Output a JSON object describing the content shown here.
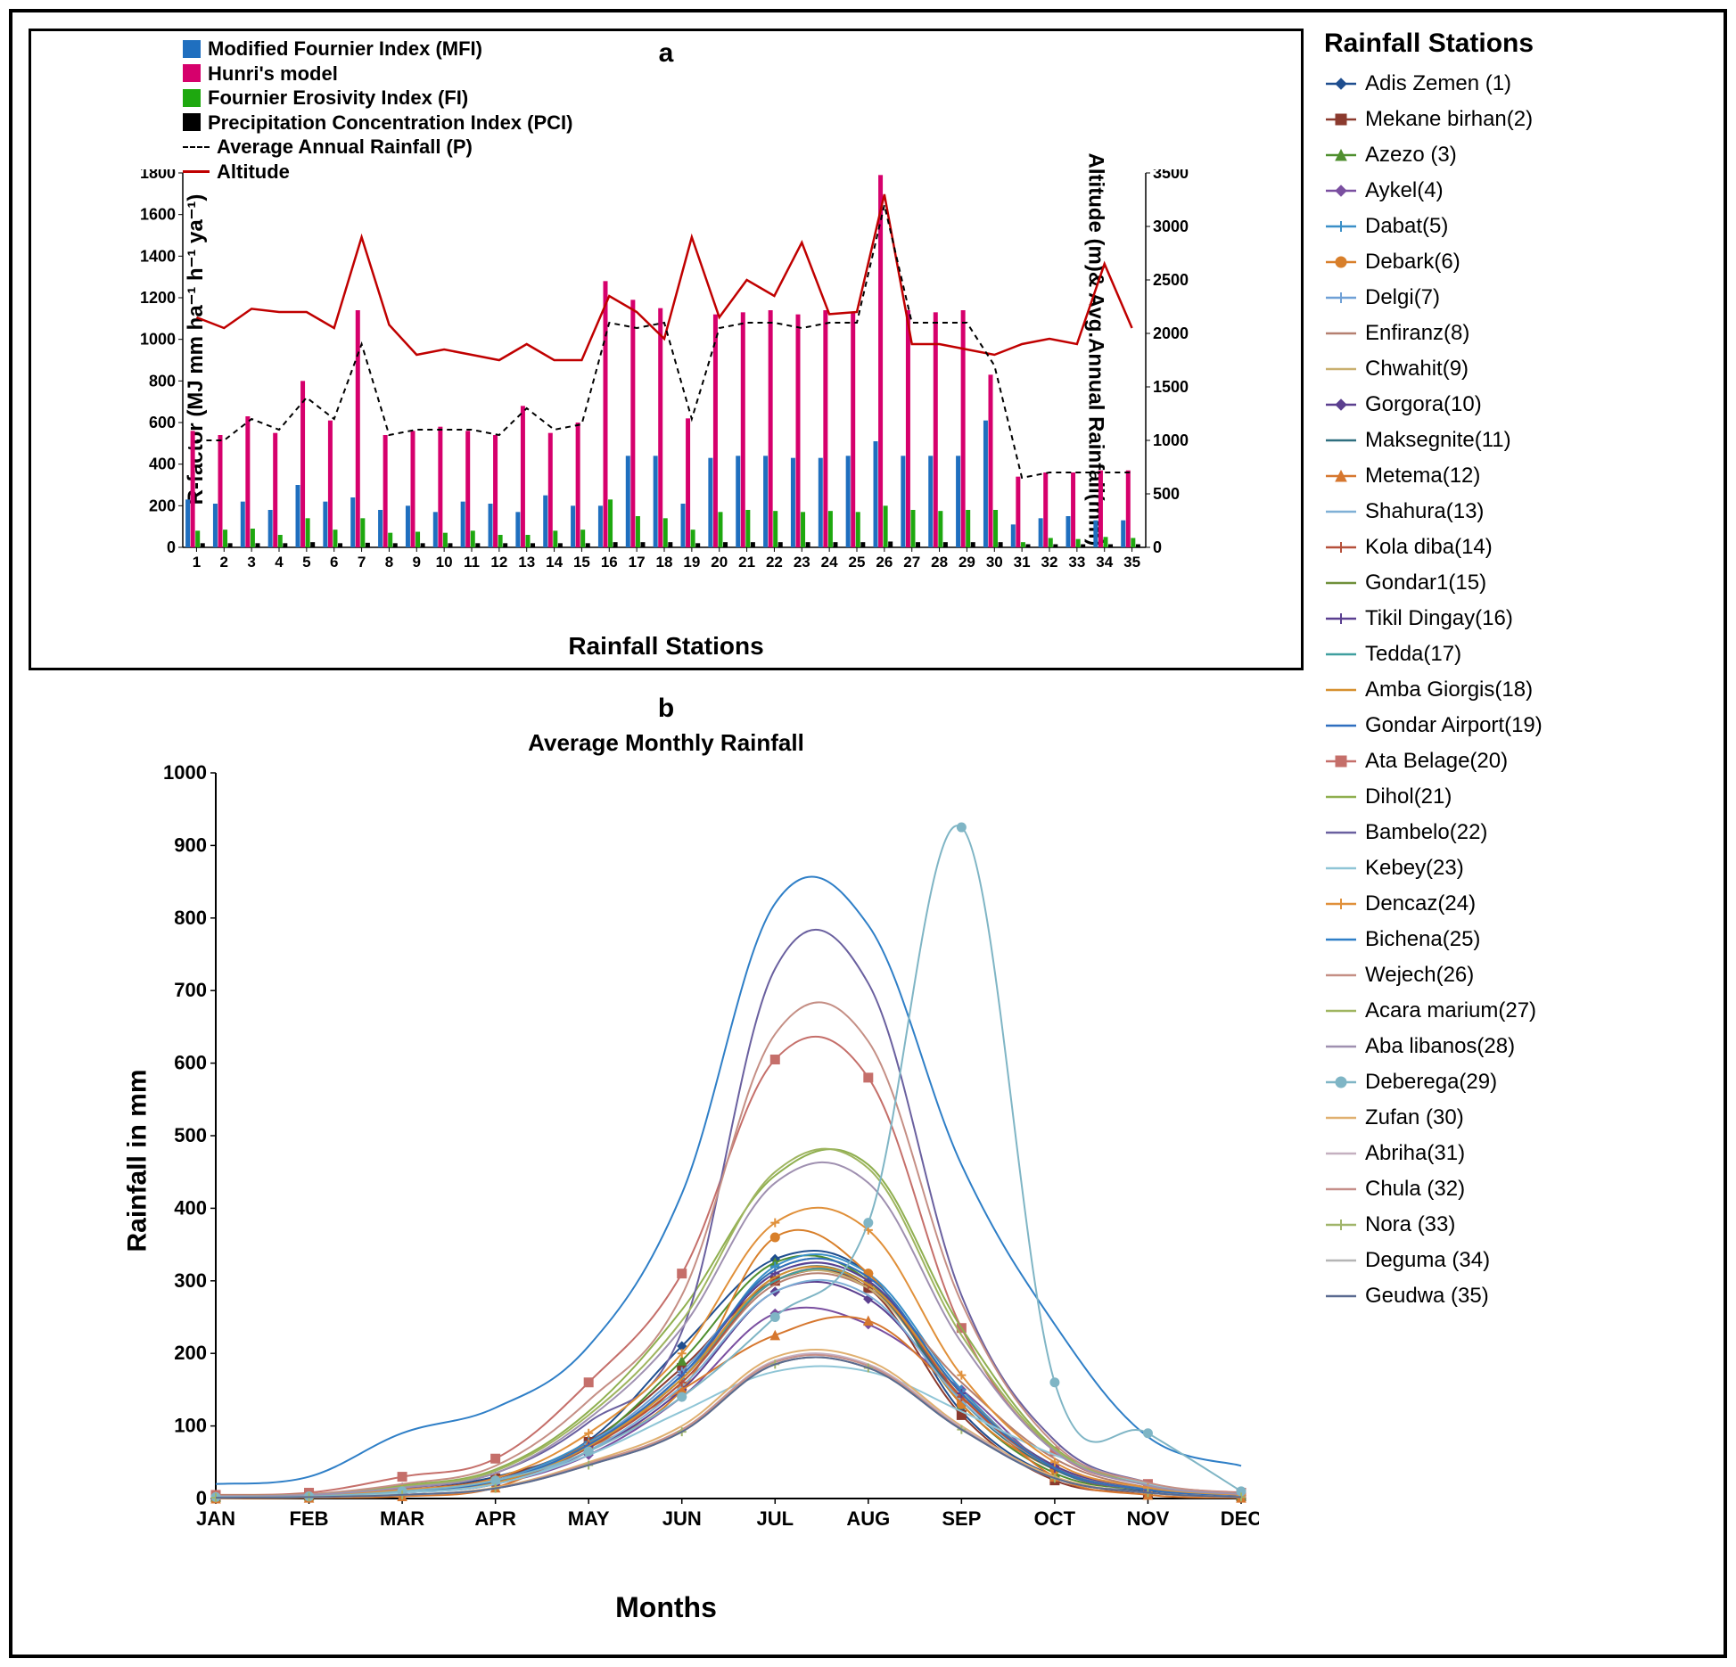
{
  "colors": {
    "mfi": "#1f6fbf",
    "hunri": "#d6006c",
    "fi": "#1ea80f",
    "pci": "#000000",
    "avg_p": "#000000",
    "altitude": "#c00000",
    "frame": "#000000",
    "bg": "#ffffff"
  },
  "panel_a": {
    "label": "a",
    "legend": {
      "mfi": "Modified Fournier Index (MFI)",
      "hunri": "Hunri's model",
      "fi": "Fournier Erosivity Index (FI)",
      "pci": "Precipitation Concentration Index (PCI)",
      "avg_p": "Average Annual Rainfall (P)",
      "altitude": "Altitude"
    },
    "ylabel_left": "R-factor (MJ mm ha⁻¹ h⁻¹ ya⁻¹)",
    "ylabel_right": "Altitude (m)& Avg.Annual Rainfall(mm)",
    "xlabel": "Rainfall Stations",
    "y_left": {
      "min": 0,
      "max": 1800,
      "step": 200
    },
    "y_right": {
      "min": 0,
      "max": 3500,
      "step": 500
    },
    "x_categories": [
      1,
      2,
      3,
      4,
      5,
      6,
      7,
      8,
      9,
      10,
      11,
      12,
      13,
      14,
      15,
      16,
      17,
      18,
      19,
      20,
      21,
      22,
      23,
      24,
      25,
      26,
      27,
      28,
      29,
      30,
      31,
      32,
      33,
      34,
      35
    ],
    "series": {
      "mfi": [
        230,
        210,
        220,
        180,
        300,
        220,
        240,
        180,
        200,
        170,
        220,
        210,
        170,
        250,
        200,
        200,
        440,
        440,
        210,
        430,
        440,
        440,
        430,
        430,
        440,
        510,
        440,
        440,
        440,
        610,
        110,
        140,
        150,
        130,
        130
      ],
      "hunri": [
        560,
        540,
        630,
        550,
        800,
        610,
        1140,
        540,
        560,
        580,
        560,
        540,
        680,
        550,
        600,
        1280,
        1190,
        1150,
        620,
        1120,
        1130,
        1140,
        1120,
        1140,
        1130,
        1790,
        1140,
        1130,
        1140,
        830,
        340,
        360,
        360,
        370,
        370
      ],
      "fi": [
        80,
        85,
        90,
        60,
        140,
        85,
        140,
        70,
        75,
        70,
        80,
        60,
        60,
        80,
        85,
        230,
        150,
        140,
        85,
        170,
        180,
        175,
        170,
        175,
        170,
        200,
        180,
        175,
        180,
        180,
        25,
        45,
        40,
        50,
        45
      ],
      "pci": [
        20,
        20,
        20,
        20,
        25,
        20,
        22,
        20,
        20,
        20,
        20,
        20,
        20,
        20,
        20,
        25,
        25,
        25,
        20,
        25,
        25,
        25,
        25,
        25,
        25,
        28,
        25,
        25,
        25,
        25,
        15,
        15,
        15,
        15,
        15
      ],
      "altitude": [
        2150,
        2050,
        2230,
        2200,
        2200,
        2050,
        2900,
        2080,
        1800,
        1850,
        1800,
        1750,
        1900,
        1750,
        1750,
        2350,
        2200,
        1950,
        2900,
        2150,
        2500,
        2350,
        2850,
        2180,
        2200,
        3300,
        1900,
        1900,
        1850,
        1800,
        1900,
        1950,
        1900,
        2650,
        2050
      ],
      "avg_p": [
        1000,
        1000,
        1200,
        1100,
        1400,
        1200,
        1900,
        1050,
        1100,
        1100,
        1100,
        1050,
        1300,
        1100,
        1150,
        2100,
        2050,
        2100,
        1200,
        2050,
        2100,
        2100,
        2050,
        2100,
        2100,
        3200,
        2100,
        2100,
        2100,
        1700,
        650,
        700,
        700,
        700,
        700
      ]
    }
  },
  "panel_b": {
    "label": "b",
    "title": "Average Monthly Rainfall",
    "ylabel": "Rainfall in mm",
    "xlabel": "Months",
    "y": {
      "min": 0,
      "max": 1000,
      "step": 100
    },
    "months": [
      "JAN",
      "FEB",
      "MAR",
      "APR",
      "MAY",
      "JUN",
      "JUL",
      "AUG",
      "SEP",
      "OCT",
      "NOV",
      "DEC"
    ],
    "lines": [
      {
        "name": "Adis Zemen (1)",
        "color": "#1f4e8f",
        "marker": "diamond",
        "v": [
          4,
          5,
          15,
          30,
          80,
          210,
          330,
          310,
          120,
          30,
          10,
          4
        ]
      },
      {
        "name": "Mekane birhan(2)",
        "color": "#8b3a2e",
        "marker": "square",
        "v": [
          3,
          4,
          12,
          28,
          78,
          180,
          300,
          290,
          115,
          25,
          8,
          3
        ]
      },
      {
        "name": "Azezo (3)",
        "color": "#4f8f2f",
        "marker": "triangle",
        "v": [
          2,
          4,
          10,
          25,
          75,
          190,
          325,
          300,
          130,
          35,
          12,
          4
        ]
      },
      {
        "name": "Aykel(4)",
        "color": "#7a4fa0",
        "marker": "diamond",
        "v": [
          3,
          3,
          8,
          20,
          60,
          140,
          255,
          240,
          150,
          40,
          12,
          4
        ]
      },
      {
        "name": "Dabat(5)",
        "color": "#3a8fc7",
        "marker": "plus",
        "v": [
          2,
          3,
          10,
          25,
          78,
          165,
          320,
          310,
          150,
          40,
          15,
          5
        ]
      },
      {
        "name": "Debark(6)",
        "color": "#d87f2a",
        "marker": "circle",
        "v": [
          2,
          2,
          9,
          20,
          70,
          150,
          360,
          310,
          130,
          40,
          12,
          4
        ]
      },
      {
        "name": "Delgi(7)",
        "color": "#6fa0d6",
        "marker": "plus",
        "v": [
          3,
          3,
          10,
          25,
          75,
          175,
          310,
          300,
          145,
          45,
          15,
          5
        ]
      },
      {
        "name": "Enfiranz(8)",
        "color": "#b58070",
        "marker": "none",
        "v": [
          2,
          3,
          8,
          22,
          70,
          160,
          295,
          290,
          160,
          55,
          15,
          5
        ]
      },
      {
        "name": "Chwahit(9)",
        "color": "#c9b070",
        "marker": "none",
        "v": [
          2,
          3,
          9,
          22,
          72,
          165,
          300,
          290,
          140,
          45,
          12,
          4
        ]
      },
      {
        "name": "Gorgora(10)",
        "color": "#5b3f8f",
        "marker": "diamond",
        "v": [
          2,
          3,
          8,
          20,
          65,
          150,
          285,
          275,
          140,
          45,
          12,
          4
        ]
      },
      {
        "name": "Maksegnite(11)",
        "color": "#2f6f7f",
        "marker": "none",
        "v": [
          2,
          3,
          9,
          22,
          72,
          165,
          305,
          295,
          135,
          40,
          12,
          4
        ]
      },
      {
        "name": "Metema(12)",
        "color": "#d6772f",
        "marker": "triangle",
        "v": [
          0,
          1,
          3,
          15,
          75,
          150,
          225,
          245,
          140,
          30,
          5,
          1
        ]
      },
      {
        "name": "Shahura(13)",
        "color": "#7fb0d6",
        "marker": "none",
        "v": [
          2,
          3,
          8,
          20,
          66,
          155,
          285,
          280,
          135,
          42,
          12,
          4
        ]
      },
      {
        "name": "Kola diba(14)",
        "color": "#b5503a",
        "marker": "plus",
        "v": [
          2,
          3,
          9,
          22,
          70,
          160,
          300,
          295,
          140,
          42,
          12,
          4
        ]
      },
      {
        "name": "Gondar1(15)",
        "color": "#6f8f3a",
        "marker": "none",
        "v": [
          2,
          3,
          10,
          24,
          74,
          170,
          315,
          305,
          145,
          42,
          12,
          4
        ]
      },
      {
        "name": "Tikil Dingay(16)",
        "color": "#5a3f90",
        "marker": "plus",
        "v": [
          2,
          3,
          9,
          22,
          72,
          170,
          310,
          300,
          145,
          42,
          12,
          4
        ]
      },
      {
        "name": "Tedda(17)",
        "color": "#3f9f9f",
        "marker": "none",
        "v": [
          2,
          3,
          9,
          22,
          72,
          165,
          300,
          295,
          145,
          42,
          12,
          4
        ]
      },
      {
        "name": "Amba Giorgis(18)",
        "color": "#d6902f",
        "marker": "none",
        "v": [
          2,
          3,
          9,
          22,
          72,
          165,
          305,
          295,
          145,
          42,
          12,
          4
        ]
      },
      {
        "name": "Gondar Airport(19)",
        "color": "#2f6fbf",
        "marker": "none",
        "v": [
          2,
          3,
          10,
          24,
          74,
          170,
          315,
          305,
          145,
          42,
          12,
          4
        ]
      },
      {
        "name": "Ata Belage(20)",
        "color": "#c56f6a",
        "marker": "square",
        "v": [
          5,
          8,
          30,
          55,
          160,
          310,
          605,
          580,
          235,
          65,
          20,
          8
        ]
      },
      {
        "name": "Dihol(21)",
        "color": "#8faf4f",
        "marker": "none",
        "v": [
          4,
          6,
          18,
          40,
          120,
          260,
          445,
          460,
          235,
          70,
          20,
          6
        ]
      },
      {
        "name": "Bambelo(22)",
        "color": "#6a609f",
        "marker": "none",
        "v": [
          3,
          5,
          14,
          35,
          105,
          230,
          730,
          710,
          280,
          80,
          22,
          7
        ]
      },
      {
        "name": "Kebey(23)",
        "color": "#8fc5d6",
        "marker": "none",
        "v": [
          2,
          3,
          8,
          20,
          60,
          120,
          175,
          175,
          120,
          60,
          20,
          5
        ]
      },
      {
        "name": "Dencaz(24)",
        "color": "#e0903a",
        "marker": "plus",
        "v": [
          3,
          4,
          12,
          28,
          90,
          200,
          380,
          370,
          170,
          50,
          15,
          5
        ]
      },
      {
        "name": "Bichena(25)",
        "color": "#2f7fc7",
        "marker": "none",
        "v": [
          20,
          30,
          90,
          125,
          210,
          420,
          820,
          790,
          460,
          240,
          85,
          45
        ]
      },
      {
        "name": "Wejech(26)",
        "color": "#c58f85",
        "marker": "none",
        "v": [
          4,
          6,
          20,
          45,
          135,
          280,
          640,
          630,
          270,
          75,
          22,
          7
        ]
      },
      {
        "name": "Acara marium(27)",
        "color": "#9fb560",
        "marker": "none",
        "v": [
          3,
          5,
          16,
          38,
          115,
          245,
          450,
          455,
          225,
          68,
          18,
          6
        ]
      },
      {
        "name": "Aba libanos(28)",
        "color": "#9f90b0",
        "marker": "none",
        "v": [
          3,
          5,
          15,
          35,
          110,
          235,
          435,
          435,
          215,
          65,
          18,
          6
        ]
      },
      {
        "name": "Deberega(29)",
        "color": "#7fb5c5",
        "marker": "circle",
        "v": [
          2,
          3,
          10,
          25,
          65,
          140,
          250,
          380,
          925,
          160,
          90,
          10
        ]
      },
      {
        "name": "Zufan (30)",
        "color": "#e0b070",
        "marker": "none",
        "v": [
          1,
          2,
          5,
          15,
          50,
          100,
          195,
          190,
          100,
          30,
          8,
          2
        ]
      },
      {
        "name": "Abriha(31)",
        "color": "#c5b0c0",
        "marker": "none",
        "v": [
          1,
          2,
          5,
          14,
          48,
          95,
          190,
          185,
          98,
          28,
          8,
          2
        ]
      },
      {
        "name": "Chula (32)",
        "color": "#c58f8a",
        "marker": "none",
        "v": [
          1,
          2,
          5,
          14,
          48,
          95,
          188,
          183,
          96,
          28,
          8,
          2
        ]
      },
      {
        "name": "Nora (33)",
        "color": "#a0b56a",
        "marker": "plus",
        "v": [
          1,
          2,
          5,
          14,
          46,
          92,
          185,
          180,
          95,
          28,
          8,
          2
        ]
      },
      {
        "name": "Deguma (34)",
        "color": "#b5b5b5",
        "marker": "none",
        "v": [
          1,
          2,
          5,
          14,
          46,
          92,
          185,
          180,
          95,
          28,
          8,
          2
        ]
      },
      {
        "name": "Geudwa (35)",
        "color": "#5a6a90",
        "marker": "none",
        "v": [
          1,
          2,
          5,
          14,
          46,
          92,
          185,
          180,
          95,
          28,
          8,
          2
        ]
      }
    ]
  },
  "stations": {
    "title": "Rainfall Stations",
    "items": [
      {
        "label": "Adis Zemen (1)",
        "color": "#1f4e8f",
        "marker": "diamond"
      },
      {
        "label": "Mekane birhan(2)",
        "color": "#8b3a2e",
        "marker": "square"
      },
      {
        "label": "Azezo (3)",
        "color": "#4f8f2f",
        "marker": "triangle"
      },
      {
        "label": "Aykel(4)",
        "color": "#7a4fa0",
        "marker": "diamond"
      },
      {
        "label": "Dabat(5)",
        "color": "#3a8fc7",
        "marker": "plus"
      },
      {
        "label": "Debark(6)",
        "color": "#d87f2a",
        "marker": "circle"
      },
      {
        "label": "Delgi(7)",
        "color": "#6fa0d6",
        "marker": "plus"
      },
      {
        "label": "Enfiranz(8)",
        "color": "#b58070",
        "marker": "none"
      },
      {
        "label": "Chwahit(9)",
        "color": "#c9b070",
        "marker": "none"
      },
      {
        "label": "Gorgora(10)",
        "color": "#5b3f8f",
        "marker": "diamond"
      },
      {
        "label": "Maksegnite(11)",
        "color": "#2f6f7f",
        "marker": "none"
      },
      {
        "label": "Metema(12)",
        "color": "#d6772f",
        "marker": "triangle"
      },
      {
        "label": "Shahura(13)",
        "color": "#7fb0d6",
        "marker": "none"
      },
      {
        "label": "Kola diba(14)",
        "color": "#b5503a",
        "marker": "plus"
      },
      {
        "label": "Gondar1(15)",
        "color": "#6f8f3a",
        "marker": "none"
      },
      {
        "label": "Tikil Dingay(16)",
        "color": "#5a3f90",
        "marker": "plus"
      },
      {
        "label": "Tedda(17)",
        "color": "#3f9f9f",
        "marker": "none"
      },
      {
        "label": "Amba Giorgis(18)",
        "color": "#d6902f",
        "marker": "none"
      },
      {
        "label": "Gondar Airport(19)",
        "color": "#2f6fbf",
        "marker": "none"
      },
      {
        "label": "Ata Belage(20)",
        "color": "#c56f6a",
        "marker": "square"
      },
      {
        "label": "Dihol(21)",
        "color": "#8faf4f",
        "marker": "none"
      },
      {
        "label": "Bambelo(22)",
        "color": "#6a609f",
        "marker": "none"
      },
      {
        "label": "Kebey(23)",
        "color": "#8fc5d6",
        "marker": "none"
      },
      {
        "label": "Dencaz(24)",
        "color": "#e0903a",
        "marker": "plus"
      },
      {
        "label": "Bichena(25)",
        "color": "#2f7fc7",
        "marker": "none"
      },
      {
        "label": "Wejech(26)",
        "color": "#c58f85",
        "marker": "none"
      },
      {
        "label": "Acara marium(27)",
        "color": "#9fb560",
        "marker": "none"
      },
      {
        "label": "Aba libanos(28)",
        "color": "#9f90b0",
        "marker": "none"
      },
      {
        "label": "Deberega(29)",
        "color": "#7fb5c5",
        "marker": "circle"
      },
      {
        "label": "Zufan (30)",
        "color": "#e0b070",
        "marker": "none"
      },
      {
        "label": "Abriha(31)",
        "color": "#c5b0c0",
        "marker": "none"
      },
      {
        "label": "Chula (32)",
        "color": "#c58f8a",
        "marker": "none"
      },
      {
        "label": "Nora (33)",
        "color": "#a0b56a",
        "marker": "plus"
      },
      {
        "label": "Deguma (34)",
        "color": "#b5b5b5",
        "marker": "none"
      },
      {
        "label": "Geudwa (35)",
        "color": "#5a6a90",
        "marker": "none"
      }
    ]
  }
}
